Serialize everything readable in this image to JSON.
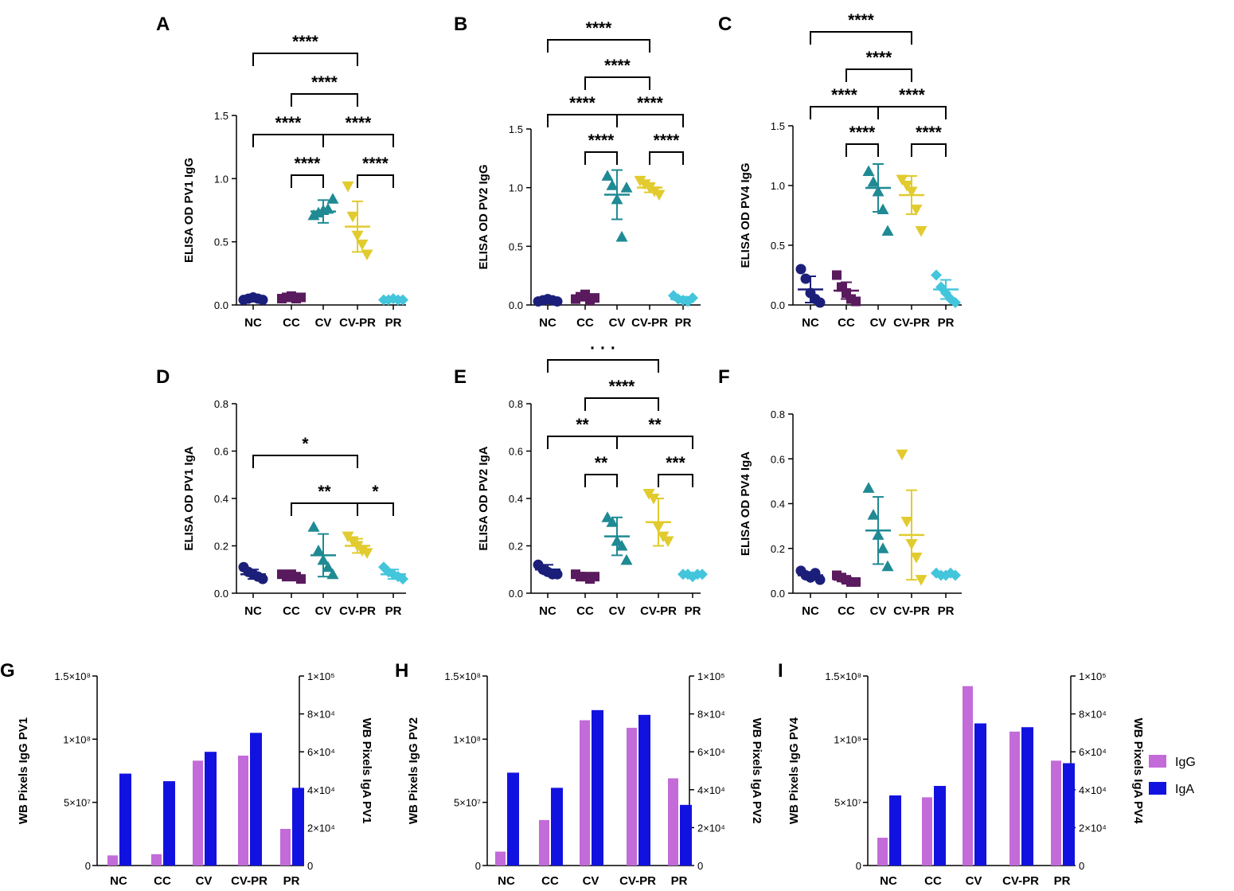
{
  "colors": {
    "NC": "#1b1f7a",
    "CC": "#5a1a5e",
    "CV": "#1f8a93",
    "CV-PR": "#e1cb2e",
    "PR": "#43c5dc",
    "IgG": "#c26bd9",
    "IgA": "#1212e0"
  },
  "chart_data": [
    {
      "panel": "A",
      "type": "scatter",
      "ylabel": "ELISA OD PV1 IgG",
      "ylim": [
        0,
        1.5
      ],
      "yticks": [
        "0.0",
        "0.5",
        "1.0",
        "1.5"
      ],
      "categories": [
        "NC",
        "CC",
        "CV",
        "CV-PR",
        "PR"
      ],
      "groups": [
        {
          "name": "NC",
          "marker": "circle",
          "points": [
            0.04,
            0.05,
            0.06,
            0.05,
            0.04
          ],
          "mean": 0.05,
          "sd": 0.01
        },
        {
          "name": "CC",
          "marker": "square",
          "points": [
            0.05,
            0.06,
            0.07,
            0.05,
            0.06
          ],
          "mean": 0.06,
          "sd": 0.01
        },
        {
          "name": "CV",
          "marker": "triangle-up",
          "points": [
            0.71,
            0.73,
            0.75,
            0.76,
            0.84
          ],
          "mean": 0.74,
          "sd": 0.09
        },
        {
          "name": "CV-PR",
          "marker": "triangle-down",
          "points": [
            0.94,
            0.7,
            0.55,
            0.48,
            0.4
          ],
          "mean": 0.62,
          "sd": 0.2
        },
        {
          "name": "PR",
          "marker": "diamond",
          "points": [
            0.04,
            0.04,
            0.05,
            0.04,
            0.04
          ],
          "mean": 0.04,
          "sd": 0.005
        }
      ],
      "comparisons": [
        {
          "from": "NC",
          "to": "CV-PR",
          "label": "****",
          "level": 0
        },
        {
          "from": "CC",
          "to": "CV-PR",
          "label": "****",
          "level": 1
        },
        {
          "from": "NC",
          "to": "CV",
          "label": "****",
          "level": 2
        },
        {
          "from": "CV",
          "to": "PR",
          "label": "****",
          "level": 2
        },
        {
          "from": "CC",
          "to": "CV",
          "label": "****",
          "level": 3
        },
        {
          "from": "CV-PR",
          "to": "PR",
          "label": "****",
          "level": 3
        }
      ]
    },
    {
      "panel": "B",
      "type": "scatter",
      "ylabel": "ELISA OD PV2 IgG",
      "ylim": [
        0,
        1.5
      ],
      "yticks": [
        "0.0",
        "0.5",
        "1.0",
        "1.5"
      ],
      "categories": [
        "NC",
        "CC",
        "CV",
        "CV-PR",
        "PR"
      ],
      "groups": [
        {
          "name": "NC",
          "marker": "circle",
          "points": [
            0.03,
            0.04,
            0.05,
            0.04,
            0.03
          ],
          "mean": 0.04,
          "sd": 0.01
        },
        {
          "name": "CC",
          "marker": "square",
          "points": [
            0.05,
            0.07,
            0.09,
            0.04,
            0.06
          ],
          "mean": 0.06,
          "sd": 0.02
        },
        {
          "name": "CV",
          "marker": "triangle-up",
          "points": [
            1.1,
            1.02,
            0.9,
            0.58,
            1.0
          ],
          "mean": 0.94,
          "sd": 0.21
        },
        {
          "name": "CV-PR",
          "marker": "triangle-down",
          "points": [
            1.06,
            1.03,
            1.0,
            0.97,
            0.94
          ],
          "mean": 1.0,
          "sd": 0.04
        },
        {
          "name": "PR",
          "marker": "diamond",
          "points": [
            0.08,
            0.05,
            0.04,
            0.03,
            0.06
          ],
          "mean": 0.05,
          "sd": 0.02
        }
      ],
      "comparisons": [
        {
          "from": "NC",
          "to": "CV-PR",
          "label": "****",
          "level": 0
        },
        {
          "from": "CC",
          "to": "CV-PR",
          "label": "****",
          "level": 1
        },
        {
          "from": "NC",
          "to": "CV",
          "label": "****",
          "level": 2
        },
        {
          "from": "CV",
          "to": "PR",
          "label": "****",
          "level": 2
        },
        {
          "from": "CC",
          "to": "CV",
          "label": "****",
          "level": 3
        },
        {
          "from": "CV-PR",
          "to": "PR",
          "label": "****",
          "level": 3
        }
      ]
    },
    {
      "panel": "C",
      "type": "scatter",
      "ylabel": "ELISA OD PV4 IgG",
      "ylim": [
        0,
        1.5
      ],
      "yticks": [
        "0.0",
        "0.5",
        "1.0",
        "1.5"
      ],
      "categories": [
        "NC",
        "CC",
        "CV",
        "CV-PR",
        "PR"
      ],
      "groups": [
        {
          "name": "NC",
          "marker": "circle",
          "points": [
            0.3,
            0.22,
            0.1,
            0.05,
            0.02
          ],
          "mean": 0.13,
          "sd": 0.11
        },
        {
          "name": "CC",
          "marker": "square",
          "points": [
            0.25,
            0.15,
            0.1,
            0.05,
            0.03
          ],
          "mean": 0.12,
          "sd": 0.07
        },
        {
          "name": "CV",
          "marker": "triangle-up",
          "points": [
            1.12,
            1.03,
            0.95,
            0.8,
            0.62
          ],
          "mean": 0.98,
          "sd": 0.2
        },
        {
          "name": "CV-PR",
          "marker": "triangle-down",
          "points": [
            1.05,
            1.0,
            0.95,
            0.8,
            0.62
          ],
          "mean": 0.92,
          "sd": 0.16
        },
        {
          "name": "PR",
          "marker": "diamond",
          "points": [
            0.25,
            0.15,
            0.1,
            0.05,
            0.02
          ],
          "mean": 0.13,
          "sd": 0.08
        }
      ],
      "comparisons": [
        {
          "from": "NC",
          "to": "CV-PR",
          "label": "****",
          "level": 0
        },
        {
          "from": "CC",
          "to": "CV-PR",
          "label": "****",
          "level": 1
        },
        {
          "from": "NC",
          "to": "CV",
          "label": "****",
          "level": 2
        },
        {
          "from": "CV",
          "to": "PR",
          "label": "****",
          "level": 2
        },
        {
          "from": "CC",
          "to": "CV",
          "label": "****",
          "level": 3
        },
        {
          "from": "CV-PR",
          "to": "PR",
          "label": "****",
          "level": 3
        }
      ]
    },
    {
      "panel": "D",
      "type": "scatter",
      "ylabel": "ELISA OD PV1 IgA",
      "ylim": [
        0,
        0.8
      ],
      "yticks": [
        "0.0",
        "0.2",
        "0.4",
        "0.6",
        "0.8"
      ],
      "categories": [
        "NC",
        "CC",
        "CV",
        "CV-PR",
        "PR"
      ],
      "groups": [
        {
          "name": "NC",
          "marker": "circle",
          "points": [
            0.11,
            0.09,
            0.08,
            0.07,
            0.06
          ],
          "mean": 0.08,
          "sd": 0.02
        },
        {
          "name": "CC",
          "marker": "square",
          "points": [
            0.08,
            0.07,
            0.08,
            0.07,
            0.06
          ],
          "mean": 0.07,
          "sd": 0.01
        },
        {
          "name": "CV",
          "marker": "triangle-up",
          "points": [
            0.28,
            0.18,
            0.14,
            0.11,
            0.08
          ],
          "mean": 0.16,
          "sd": 0.09
        },
        {
          "name": "CV-PR",
          "marker": "triangle-down",
          "points": [
            0.24,
            0.22,
            0.2,
            0.18,
            0.17
          ],
          "mean": 0.2,
          "sd": 0.03
        },
        {
          "name": "PR",
          "marker": "diamond",
          "points": [
            0.11,
            0.09,
            0.08,
            0.07,
            0.06
          ],
          "mean": 0.08,
          "sd": 0.02
        }
      ],
      "comparisons": [
        {
          "from": "NC",
          "to": "CV-PR",
          "label": "*",
          "level": 0
        },
        {
          "from": "CC",
          "to": "CV-PR",
          "label": "**",
          "level": 1
        },
        {
          "from": "CV-PR",
          "to": "PR",
          "label": "*",
          "level": 1
        }
      ]
    },
    {
      "panel": "E",
      "type": "scatter",
      "ylabel": "ELISA OD PV2 IgA",
      "ylim": [
        0,
        0.8
      ],
      "yticks": [
        "0.0",
        "0.2",
        "0.4",
        "0.6",
        "0.8"
      ],
      "categories": [
        "NC",
        "CC",
        "CV",
        "CV-PR",
        "PR"
      ],
      "groups": [
        {
          "name": "NC",
          "marker": "circle",
          "points": [
            0.12,
            0.1,
            0.09,
            0.08,
            0.08
          ],
          "mean": 0.1,
          "sd": 0.02
        },
        {
          "name": "CC",
          "marker": "square",
          "points": [
            0.08,
            0.07,
            0.07,
            0.06,
            0.07
          ],
          "mean": 0.07,
          "sd": 0.01
        },
        {
          "name": "CV",
          "marker": "triangle-up",
          "points": [
            0.32,
            0.3,
            0.22,
            0.2,
            0.14
          ],
          "mean": 0.24,
          "sd": 0.08
        },
        {
          "name": "CV-PR",
          "marker": "triangle-down",
          "points": [
            0.42,
            0.4,
            0.28,
            0.24,
            0.22
          ],
          "mean": 0.3,
          "sd": 0.1
        },
        {
          "name": "PR",
          "marker": "diamond",
          "points": [
            0.08,
            0.08,
            0.07,
            0.08,
            0.08
          ],
          "mean": 0.08,
          "sd": 0.005
        }
      ],
      "comparisons": [
        {
          "from": "NC",
          "to": "CV-PR",
          "label": "· · ·",
          "level": 0
        },
        {
          "from": "CC",
          "to": "CV-PR",
          "label": "****",
          "level": 1
        },
        {
          "from": "NC",
          "to": "CV",
          "label": "**",
          "level": 2
        },
        {
          "from": "CV",
          "to": "PR",
          "label": "**",
          "level": 2
        },
        {
          "from": "CC",
          "to": "CV",
          "label": "**",
          "level": 3
        },
        {
          "from": "CV-PR",
          "to": "PR",
          "label": "***",
          "level": 3
        }
      ]
    },
    {
      "panel": "F",
      "type": "scatter",
      "ylabel": "ELISA OD PV4 IgA",
      "ylim": [
        0,
        0.8
      ],
      "yticks": [
        "0.0",
        "0.2",
        "0.4",
        "0.6",
        "0.8"
      ],
      "categories": [
        "NC",
        "CC",
        "CV",
        "CV-PR",
        "PR"
      ],
      "groups": [
        {
          "name": "NC",
          "marker": "circle",
          "points": [
            0.1,
            0.08,
            0.07,
            0.09,
            0.06
          ],
          "mean": 0.08,
          "sd": 0.015
        },
        {
          "name": "CC",
          "marker": "square",
          "points": [
            0.08,
            0.07,
            0.06,
            0.05,
            0.05
          ],
          "mean": 0.06,
          "sd": 0.01
        },
        {
          "name": "CV",
          "marker": "triangle-up",
          "points": [
            0.47,
            0.35,
            0.26,
            0.2,
            0.12
          ],
          "mean": 0.28,
          "sd": 0.15
        },
        {
          "name": "CV-PR",
          "marker": "triangle-down",
          "points": [
            0.62,
            0.32,
            0.22,
            0.16,
            0.06
          ],
          "mean": 0.26,
          "sd": 0.2
        },
        {
          "name": "PR",
          "marker": "diamond",
          "points": [
            0.09,
            0.08,
            0.08,
            0.09,
            0.08
          ],
          "mean": 0.085,
          "sd": 0.005
        }
      ],
      "comparisons": []
    },
    {
      "panel": "G",
      "type": "bar",
      "ylabel": "WB Pixels IgG PV1",
      "y2label": "WB Pixels IgA PV1",
      "categories": [
        "NC",
        "CC",
        "CV",
        "CV-PR",
        "PR"
      ],
      "ylim": [
        0,
        150000000
      ],
      "y2lim": [
        0,
        100000
      ],
      "yticks": [
        "0",
        "5×10⁷",
        "1×10⁸",
        "1.5×10⁸"
      ],
      "y2ticks": [
        "0",
        "2×10⁴",
        "4×10⁴",
        "6×10⁴",
        "8×10⁴",
        "1×10⁵"
      ],
      "series": [
        {
          "name": "IgG",
          "axis": "left",
          "values": [
            8000000,
            9000000,
            83000000,
            87000000,
            29000000
          ]
        },
        {
          "name": "IgA",
          "axis": "right",
          "values": [
            48500,
            44500,
            60000,
            70000,
            41000
          ]
        }
      ]
    },
    {
      "panel": "H",
      "type": "bar",
      "ylabel": "WB Pixels IgG PV2",
      "y2label": "WB Pixels IgA PV2",
      "categories": [
        "NC",
        "CC",
        "CV",
        "CV-PR",
        "PR"
      ],
      "ylim": [
        0,
        150000000
      ],
      "y2lim": [
        0,
        100000
      ],
      "yticks": [
        "0",
        "5×10⁷",
        "1×10⁸",
        "1.5×10⁸"
      ],
      "y2ticks": [
        "0",
        "2×10⁴",
        "4×10⁴",
        "6×10⁴",
        "8×10⁴",
        "1×10⁵"
      ],
      "series": [
        {
          "name": "IgG",
          "axis": "left",
          "values": [
            11000000,
            36000000,
            115000000,
            109000000,
            69000000
          ]
        },
        {
          "name": "IgA",
          "axis": "right",
          "values": [
            49000,
            41000,
            82000,
            79500,
            32000
          ]
        }
      ]
    },
    {
      "panel": "I",
      "type": "bar",
      "ylabel": "WB Pixels IgG PV4",
      "y2label": "WB Pixels IgA PV4",
      "categories": [
        "NC",
        "CC",
        "CV",
        "CV-PR",
        "PR"
      ],
      "ylim": [
        0,
        150000000
      ],
      "y2lim": [
        0,
        100000
      ],
      "yticks": [
        "0",
        "5×10⁷",
        "1×10⁸",
        "1.5×10⁸"
      ],
      "y2ticks": [
        "0",
        "2×10⁴",
        "4×10⁴",
        "6×10⁴",
        "8×10⁴",
        "1×10⁵"
      ],
      "series": [
        {
          "name": "IgG",
          "axis": "left",
          "values": [
            22000000,
            54000000,
            142000000,
            106000000,
            83000000
          ]
        },
        {
          "name": "IgA",
          "axis": "right",
          "values": [
            37000,
            42000,
            75000,
            73000,
            54000
          ]
        }
      ]
    }
  ],
  "legend": {
    "items": [
      "IgG",
      "IgA"
    ]
  }
}
